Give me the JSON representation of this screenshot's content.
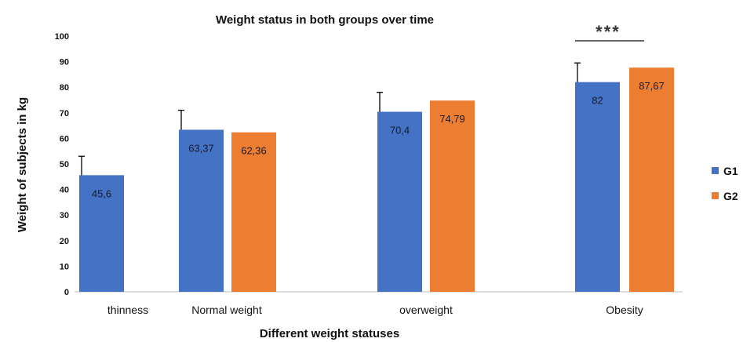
{
  "chart_data": {
    "type": "bar",
    "title": "Weight status in both groups over time",
    "xlabel": "Different weight statuses",
    "ylabel": "Weight of subjects in kg",
    "ylim": [
      0,
      100
    ],
    "yticks": [
      0,
      10,
      20,
      30,
      40,
      50,
      60,
      70,
      80,
      90,
      100
    ],
    "categories": [
      "thinness",
      "Normal weight",
      "overweight",
      "Obesity"
    ],
    "series": [
      {
        "name": "G1",
        "color": "#4472C4",
        "values": [
          45.6,
          63.37,
          70.4,
          82
        ],
        "labels": [
          "45,6",
          "63,37",
          "70,4",
          "82"
        ],
        "error_upper": [
          53,
          71,
          78,
          89.5
        ]
      },
      {
        "name": "G2",
        "color": "#ED7D31",
        "values": [
          null,
          62.36,
          74.79,
          87.67
        ],
        "labels": [
          "",
          "62,36",
          "74,79",
          "87,67"
        ]
      }
    ],
    "annotation": {
      "text": "***",
      "category": "Obesity"
    },
    "legend": "right",
    "grid": false
  }
}
